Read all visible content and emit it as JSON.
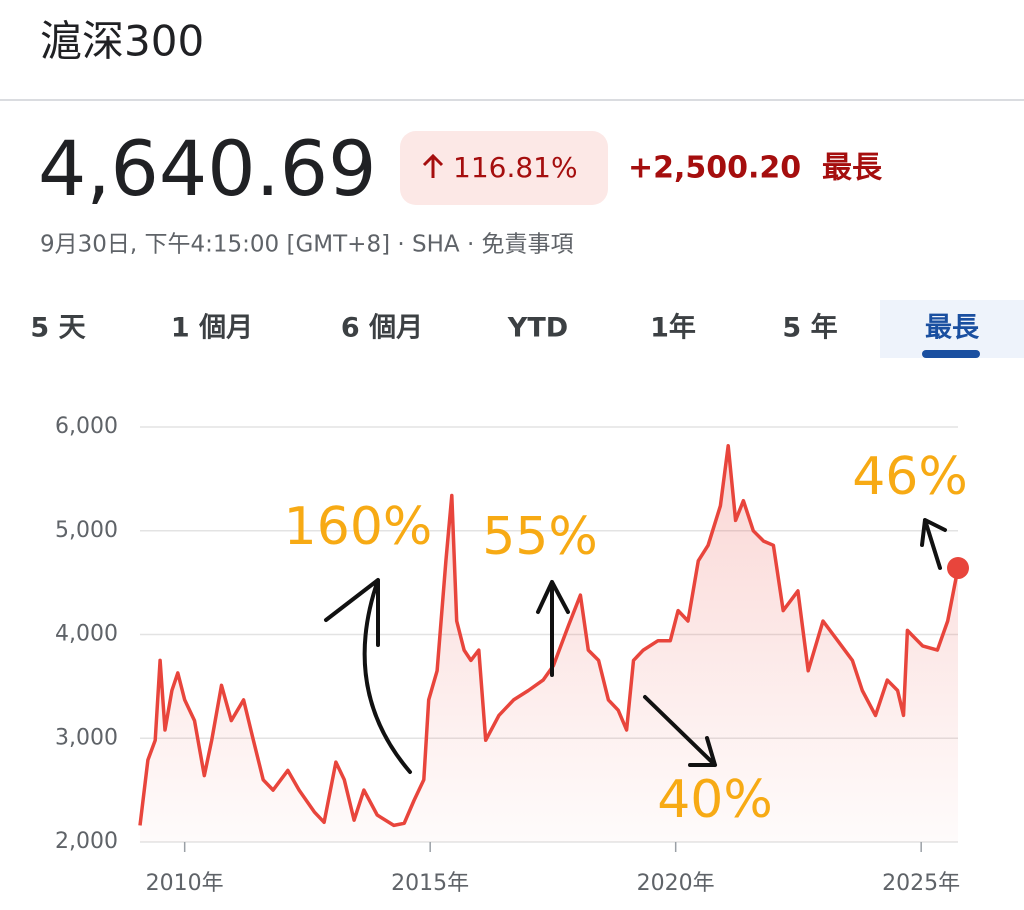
{
  "header": {
    "title": "滬深300",
    "price": "4,640.69",
    "change_percent": "116.81%",
    "change_value": "+2,500.20",
    "change_period": "最長",
    "subtitle": "9月30日, 下午4:15:00 [GMT+8] · SHA · 免責事項"
  },
  "tabs": [
    "5 天",
    "1 個月",
    "6 個月",
    "YTD",
    "1年",
    "5 年",
    "最長"
  ],
  "chart_data": {
    "type": "line",
    "color": "#e8453c",
    "x": [
      2009.09,
      2009.25,
      2009.4,
      2009.5,
      2009.6,
      2009.74,
      2009.86,
      2010.0,
      2010.2,
      2010.4,
      2010.55,
      2010.75,
      2010.95,
      2011.2,
      2011.4,
      2011.6,
      2011.8,
      2012.1,
      2012.33,
      2012.64,
      2012.84,
      2013.08,
      2013.25,
      2013.45,
      2013.65,
      2013.92,
      2014.26,
      2014.47,
      2014.67,
      2014.87,
      2014.97,
      2015.14,
      2015.32,
      2015.44,
      2015.54,
      2015.69,
      2015.83,
      2015.99,
      2016.13,
      2016.4,
      2016.7,
      2017.0,
      2017.3,
      2017.51,
      2017.82,
      2018.06,
      2018.22,
      2018.43,
      2018.63,
      2018.83,
      2019.0,
      2019.14,
      2019.34,
      2019.64,
      2019.89,
      2020.05,
      2020.25,
      2020.46,
      2020.66,
      2020.91,
      2021.07,
      2021.22,
      2021.38,
      2021.58,
      2021.79,
      2021.99,
      2022.19,
      2022.49,
      2022.7,
      2023.0,
      2023.3,
      2023.6,
      2023.8,
      2024.07,
      2024.31,
      2024.52,
      2024.64,
      2024.72,
      2025.03,
      2025.33,
      2025.54,
      2025.75
    ],
    "values": [
      2160,
      2790,
      2980,
      3750,
      3080,
      3460,
      3630,
      3370,
      3170,
      2640,
      2980,
      3510,
      3170,
      3370,
      2980,
      2600,
      2500,
      2690,
      2500,
      2290,
      2190,
      2770,
      2600,
      2210,
      2500,
      2260,
      2160,
      2180,
      2400,
      2600,
      3370,
      3650,
      4710,
      5340,
      4130,
      3850,
      3750,
      3850,
      2980,
      3220,
      3370,
      3460,
      3560,
      3700,
      4090,
      4380,
      3850,
      3750,
      3370,
      3270,
      3080,
      3750,
      3850,
      3940,
      3940,
      4230,
      4130,
      4710,
      4860,
      5240,
      5820,
      5100,
      5290,
      5000,
      4900,
      4860,
      4230,
      4420,
      3650,
      4130,
      3940,
      3750,
      3460,
      3220,
      3560,
      3460,
      3220,
      4040,
      3890,
      3850,
      4130,
      4640.69
    ],
    "xlim": [
      2009.09,
      2025.75
    ],
    "ylim": [
      2000,
      6000
    ],
    "xticks": [
      {
        "value": 2010,
        "label": "2010年"
      },
      {
        "value": 2015,
        "label": "2015年"
      },
      {
        "value": 2020,
        "label": "2020年"
      },
      {
        "value": 2025,
        "label": "2025年"
      }
    ],
    "yticks": [
      {
        "value": 2000,
        "label": "2,000"
      },
      {
        "value": 3000,
        "label": "3,000"
      },
      {
        "value": 4000,
        "label": "4,000"
      },
      {
        "value": 5000,
        "label": "5,000"
      },
      {
        "value": 6000,
        "label": "6,000"
      }
    ],
    "grid": true,
    "annotations": [
      "160%",
      "55%",
      "40%",
      "46%"
    ]
  }
}
